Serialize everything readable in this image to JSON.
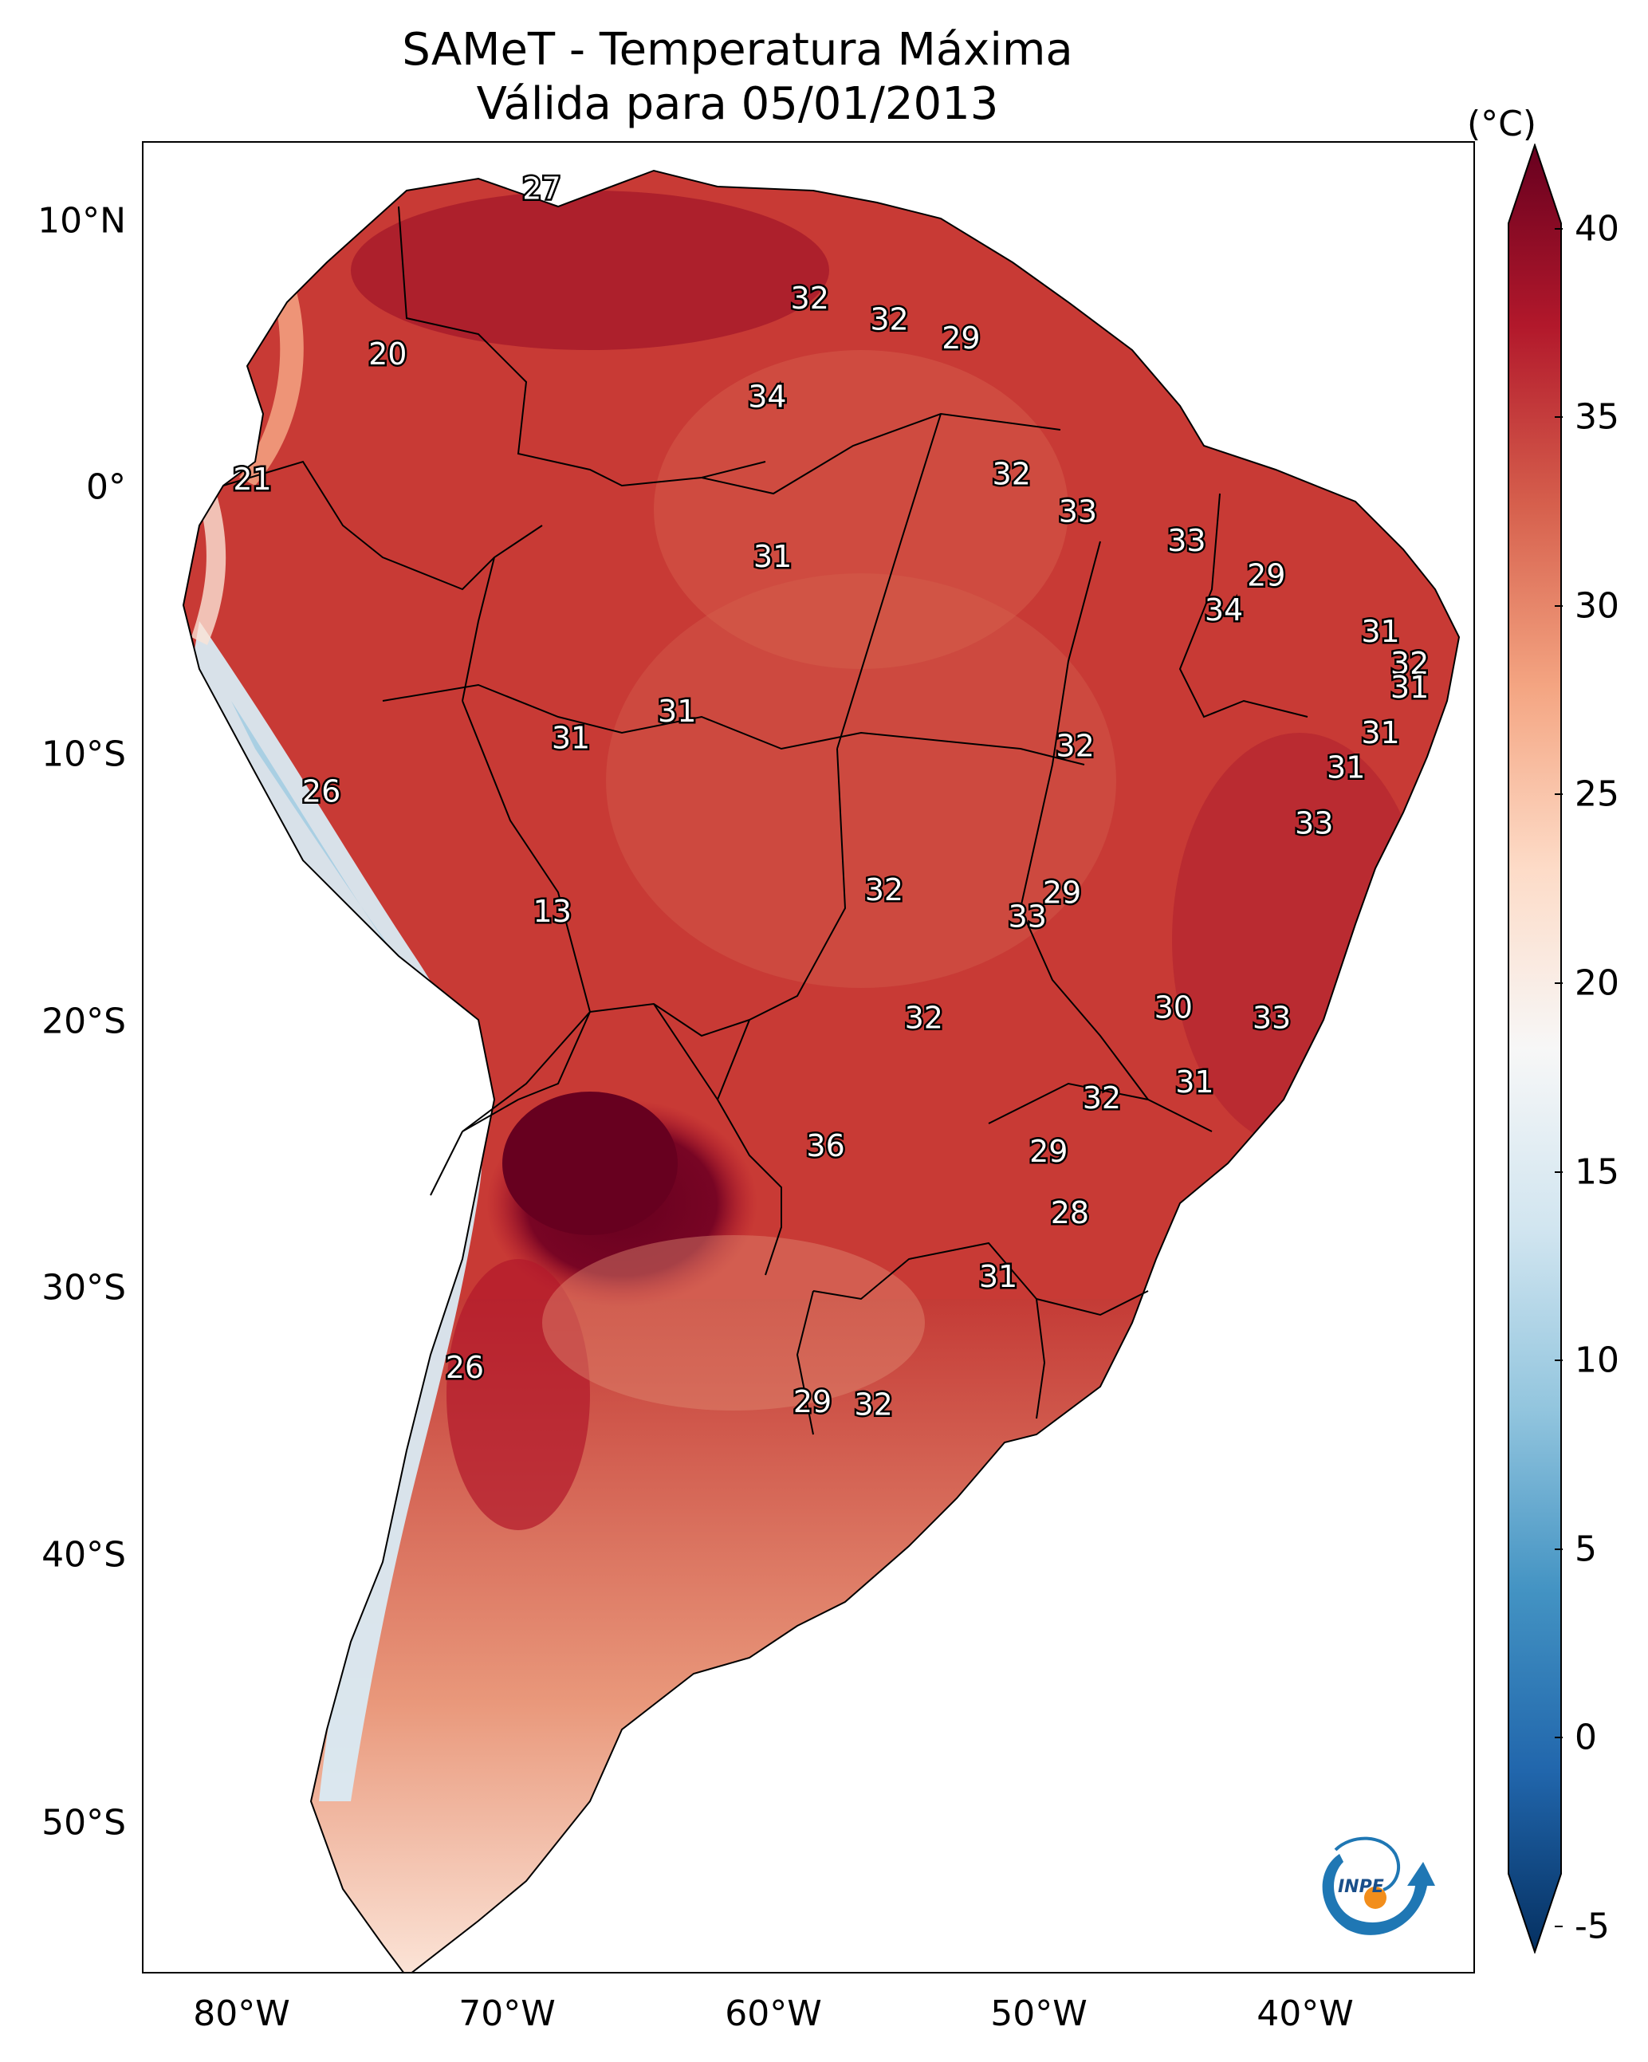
{
  "title": "SAMeT - Temperatura Máxima",
  "subtitle": "Válida para 05/01/2013",
  "colorbar": {
    "unit": "(°C)",
    "ticks": [
      "40",
      "35",
      "30",
      "25",
      "20",
      "15",
      "10",
      "5",
      "0",
      "-5"
    ],
    "range": [
      -7,
      40
    ],
    "colors": [
      "#67001f",
      "#b2182b",
      "#d6604d",
      "#f4a582",
      "#fddbc7",
      "#f7f7f7",
      "#d1e5f0",
      "#92c5de",
      "#4393c3",
      "#2166ac",
      "#053061"
    ]
  },
  "axes": {
    "lat_labels": [
      "10°N",
      "0°",
      "10°S",
      "20°S",
      "30°S",
      "40°S",
      "50°S"
    ],
    "lon_labels": [
      "80°W",
      "70°W",
      "60°W",
      "50°W",
      "40°W"
    ]
  },
  "map_values": [
    {
      "text": "27",
      "lon": -68,
      "lat": 10.7
    },
    {
      "text": "20",
      "lon": -73.8,
      "lat": 4.5
    },
    {
      "text": "32",
      "lon": -57.9,
      "lat": 6.6
    },
    {
      "text": "32",
      "lon": -54.9,
      "lat": 5.8
    },
    {
      "text": "29",
      "lon": -52.2,
      "lat": 5.1
    },
    {
      "text": "34",
      "lon": -59.5,
      "lat": 2.9
    },
    {
      "text": "21",
      "lon": -78.9,
      "lat": -0.2
    },
    {
      "text": "32",
      "lon": -50.3,
      "lat": 0.0
    },
    {
      "text": "33",
      "lon": -47.8,
      "lat": -1.4
    },
    {
      "text": "33",
      "lon": -43.7,
      "lat": -2.5
    },
    {
      "text": "31",
      "lon": -59.3,
      "lat": -3.1
    },
    {
      "text": "29",
      "lon": -40.7,
      "lat": -3.8
    },
    {
      "text": "34",
      "lon": -42.3,
      "lat": -5.1
    },
    {
      "text": "31",
      "lon": -36.4,
      "lat": -5.9
    },
    {
      "text": "32",
      "lon": -35.3,
      "lat": -7.1
    },
    {
      "text": "31",
      "lon": -35.3,
      "lat": -8.0
    },
    {
      "text": "31",
      "lon": -62.9,
      "lat": -8.9
    },
    {
      "text": "31",
      "lon": -66.9,
      "lat": -9.9
    },
    {
      "text": "32",
      "lon": -47.9,
      "lat": -10.2
    },
    {
      "text": "31",
      "lon": -36.4,
      "lat": -9.7
    },
    {
      "text": "31",
      "lon": -37.7,
      "lat": -11.0
    },
    {
      "text": "26",
      "lon": -76.3,
      "lat": -11.9
    },
    {
      "text": "33",
      "lon": -38.9,
      "lat": -13.1
    },
    {
      "text": "32",
      "lon": -55.1,
      "lat": -15.6
    },
    {
      "text": "29",
      "lon": -48.4,
      "lat": -15.7
    },
    {
      "text": "33",
      "lon": -49.7,
      "lat": -16.6
    },
    {
      "text": "13",
      "lon": -67.6,
      "lat": -16.4
    },
    {
      "text": "30",
      "lon": -44.2,
      "lat": -20.0
    },
    {
      "text": "33",
      "lon": -40.5,
      "lat": -20.4
    },
    {
      "text": "32",
      "lon": -53.6,
      "lat": -20.4
    },
    {
      "text": "31",
      "lon": -43.4,
      "lat": -22.8
    },
    {
      "text": "32",
      "lon": -46.9,
      "lat": -23.4
    },
    {
      "text": "36",
      "lon": -57.3,
      "lat": -25.2
    },
    {
      "text": "29",
      "lon": -48.9,
      "lat": -25.4
    },
    {
      "text": "28",
      "lon": -48.1,
      "lat": -27.7
    },
    {
      "text": "31",
      "lon": -50.8,
      "lat": -30.1
    },
    {
      "text": "26",
      "lon": -70.9,
      "lat": -33.5
    },
    {
      "text": "29",
      "lon": -57.8,
      "lat": -34.8
    },
    {
      "text": "32",
      "lon": -55.5,
      "lat": -34.9
    }
  ],
  "logo_text": "INPE"
}
